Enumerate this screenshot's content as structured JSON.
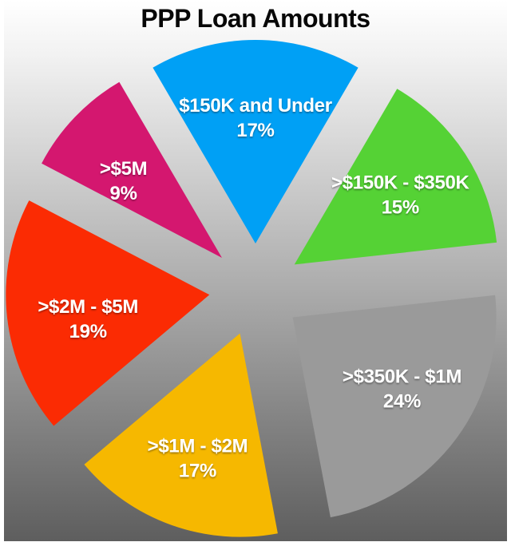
{
  "title": "PPP Loan Amounts",
  "chart_data": {
    "type": "pie",
    "title": "PPP Loan Amounts",
    "unit": "%",
    "legend_position": "none",
    "labels_on_slices": true,
    "exploded": true,
    "first_slice_position": "centered-at-top",
    "order": "clockwise",
    "label_text_color": "#FFFFFF",
    "title_color": "#070707",
    "background_gradient": {
      "top": "#FFFFFF",
      "bottom": "#5E5E5E"
    },
    "slices": [
      {
        "label": "$150K and Under",
        "value": 17,
        "value_label": "17%",
        "color": "#00A0F5"
      },
      {
        "label": ">$150K - $350K",
        "value": 15,
        "value_label": "15%",
        "color": "#55D235"
      },
      {
        "label": ">$350K - $1M",
        "value": 24,
        "value_label": "24%",
        "color": "#9A9A9A"
      },
      {
        "label": ">$1M - $2M",
        "value": 17,
        "value_label": "17%",
        "color": "#F6B800"
      },
      {
        "label": ">$2M - $5M",
        "value": 19,
        "value_label": "19%",
        "color": "#FB2B03"
      },
      {
        "label": ">$5M",
        "value": 9,
        "value_label": "9%",
        "color": "#D4176F"
      }
    ]
  }
}
